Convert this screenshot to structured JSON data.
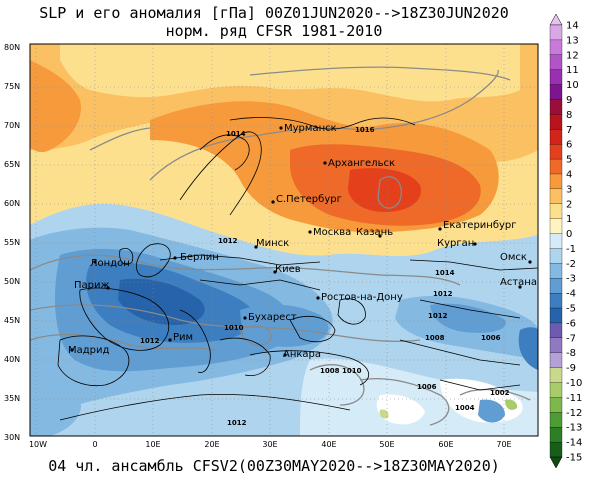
{
  "title": {
    "line1": "SLP и его аномалия [гПа] 00Z01JUN2020-->18Z30JUN2020",
    "line2": "норм. ряд CFSR 1981-2010"
  },
  "footer": "04 чл. ансамбль CFSV2(00Z30MAY2020-->18Z30MAY2020)",
  "map": {
    "lat_labels": [
      "80N",
      "75N",
      "70N",
      "65N",
      "60N",
      "55N",
      "50N",
      "45N",
      "40N",
      "35N",
      "30N"
    ],
    "lon_labels": [
      "10W",
      "0",
      "10E",
      "20E",
      "30E",
      "40E",
      "50E",
      "60E",
      "70E"
    ],
    "cities": [
      {
        "id": "murmansk",
        "name": "Мурманск"
      },
      {
        "id": "arkhangelsk",
        "name": "Архангельск"
      },
      {
        "id": "spb",
        "name": "С.Петербург"
      },
      {
        "id": "moscow",
        "name": "Москва"
      },
      {
        "id": "kazan",
        "name": "Казань"
      },
      {
        "id": "yekaterinburg",
        "name": "Екатеринбург"
      },
      {
        "id": "kurgan",
        "name": "Курган"
      },
      {
        "id": "omsk",
        "name": "Омск"
      },
      {
        "id": "astana",
        "name": "Астана"
      },
      {
        "id": "minsk",
        "name": "Минск"
      },
      {
        "id": "berlin",
        "name": "Берлин"
      },
      {
        "id": "london",
        "name": "Лондон"
      },
      {
        "id": "paris",
        "name": "Париж"
      },
      {
        "id": "kiev",
        "name": "Киев"
      },
      {
        "id": "rostov",
        "name": "Ростов-на-Дону"
      },
      {
        "id": "bucharest",
        "name": "Бухарест"
      },
      {
        "id": "rome",
        "name": "Рим"
      },
      {
        "id": "madrid",
        "name": "Мадрид"
      },
      {
        "id": "ankara",
        "name": "Анкара"
      }
    ],
    "isobar_labels": [
      "1014",
      "1016",
      "1012",
      "1014",
      "1012",
      "1012",
      "1010",
      "1008",
      "1012",
      "1008",
      "1010",
      "1006",
      "1006",
      "1004",
      "1002",
      "1012"
    ]
  },
  "colorbar": {
    "labels": [
      "14",
      "13",
      "12",
      "11",
      "10",
      "9",
      "8",
      "7",
      "6",
      "5",
      "4",
      "3",
      "2",
      "1",
      "0",
      "-1",
      "-2",
      "-3",
      "-4",
      "-5",
      "-6",
      "-7",
      "-8",
      "-9",
      "-10",
      "-11",
      "-12",
      "-13",
      "-14",
      "-15"
    ],
    "colors": [
      "#d9a6e6",
      "#c77ad8",
      "#b154c6",
      "#9a2fb1",
      "#7d1590",
      "#9a0f3a",
      "#b8141d",
      "#d2241a",
      "#e4401c",
      "#ef6a28",
      "#f79a3b",
      "#fbc061",
      "#fde08e",
      "#fff3bf",
      "#d5ebf7",
      "#aed4ee",
      "#84b9e2",
      "#5f9dd3",
      "#3c7ec0",
      "#2763aa",
      "#6c5bb0",
      "#8f7ac2",
      "#b3a0d6",
      "#c9d88a",
      "#a9cc6a",
      "#7db84d",
      "#4f9c35",
      "#2c7f24",
      "#155f18"
    ]
  }
}
